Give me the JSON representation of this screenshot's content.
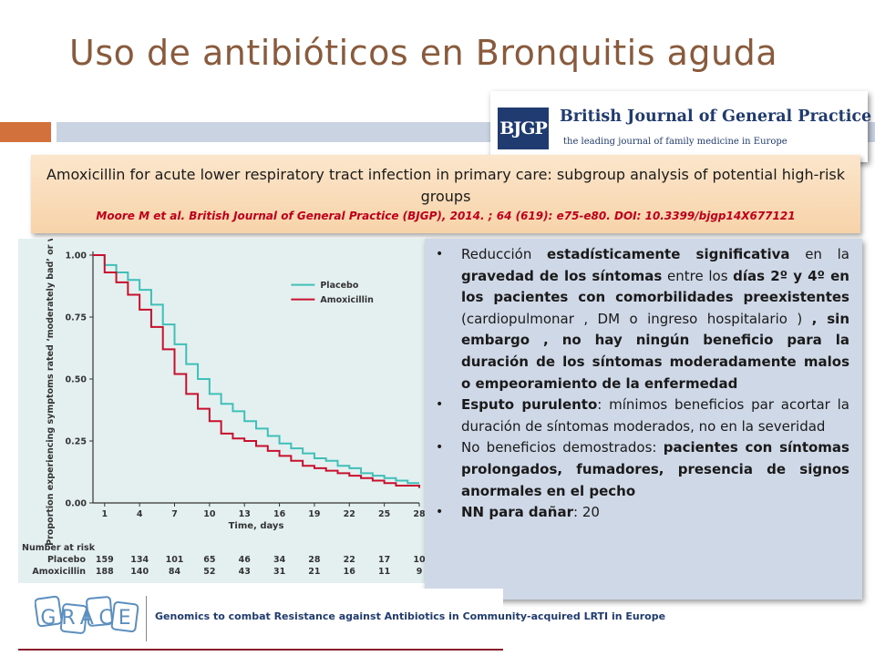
{
  "slide": {
    "title": "Uso de antibióticos en Bronquitis aguda"
  },
  "journal_logo": {
    "abbr": "BJGP",
    "name": "British Journal of General Practice",
    "tagline": "the leading journal of family medicine in Europe"
  },
  "reference": {
    "title": "Amoxicillin for acute lower respiratory tract infection in primary care: subgroup analysis of potential high-risk groups",
    "citation": "Moore M et al. British Journal of General Practice (BJGP), 2014. ; 64 (619): e75-e80. DOI: 10.3399/bjgp14X677121"
  },
  "bullets": [
    {
      "parts": [
        {
          "t": "Reducción "
        },
        {
          "t": "estadísticamente significativa",
          "b": true
        },
        {
          "t": " en la "
        },
        {
          "t": "gravedad de los síntomas",
          "b": true
        },
        {
          "t": " entre los "
        },
        {
          "t": "días 2º y 4º en los pacientes con comorbilidades preexistentes",
          "b": true
        },
        {
          "t": "  (cardiopulmonar , DM o ingreso hospitalario )  "
        },
        {
          "t": ", sin embargo , no hay ningún beneficio para la duración de los síntomas moderadamente malos o empeoramiento de la enfermedad",
          "b": true
        }
      ]
    },
    {
      "parts": [
        {
          "t": "Esputo purulento",
          "b": true
        },
        {
          "t": ": mínimos beneficios par acortar la duración de síntomas moderados,  no en la severidad"
        }
      ]
    },
    {
      "parts": [
        {
          "t": "No beneficios demostrados: "
        },
        {
          "t": "pacientes con síntomas prolongados, fumadores, presencia de signos anormales en el pecho",
          "b": true
        }
      ]
    },
    {
      "parts": [
        {
          "t": "NN para dañar",
          "b": true
        },
        {
          "t": ": 20"
        }
      ]
    }
  ],
  "chart_data": {
    "type": "line",
    "xlabel": "Time, days",
    "ylabel": "Proportion experiencing symptoms rated ‘moderately bad’ or worse",
    "xlim": [
      0,
      28
    ],
    "ylim": [
      0,
      1
    ],
    "x_ticks": [
      1,
      4,
      7,
      10,
      13,
      16,
      19,
      22,
      25,
      28
    ],
    "y_ticks": [
      "0.00",
      "0.25",
      "0.50",
      "0.75",
      "1.00"
    ],
    "legend_position": "top-right",
    "series": [
      {
        "name": "Placebo",
        "color": "#3fbfb8",
        "x": [
          0,
          1,
          2,
          3,
          4,
          5,
          6,
          7,
          8,
          9,
          10,
          11,
          12,
          13,
          14,
          15,
          16,
          17,
          18,
          19,
          20,
          21,
          22,
          23,
          24,
          25,
          26,
          27,
          28
        ],
        "y": [
          1.0,
          0.96,
          0.93,
          0.9,
          0.86,
          0.8,
          0.72,
          0.64,
          0.56,
          0.5,
          0.44,
          0.4,
          0.37,
          0.33,
          0.3,
          0.27,
          0.24,
          0.22,
          0.2,
          0.18,
          0.17,
          0.15,
          0.14,
          0.12,
          0.11,
          0.1,
          0.09,
          0.08,
          0.08
        ]
      },
      {
        "name": "Amoxicillin",
        "color": "#c8102e",
        "x": [
          0,
          1,
          2,
          3,
          4,
          5,
          6,
          7,
          8,
          9,
          10,
          11,
          12,
          13,
          14,
          15,
          16,
          17,
          18,
          19,
          20,
          21,
          22,
          23,
          24,
          25,
          26,
          27,
          28
        ],
        "y": [
          1.0,
          0.93,
          0.89,
          0.84,
          0.78,
          0.71,
          0.62,
          0.52,
          0.44,
          0.38,
          0.33,
          0.28,
          0.26,
          0.25,
          0.23,
          0.21,
          0.19,
          0.17,
          0.15,
          0.14,
          0.13,
          0.12,
          0.11,
          0.1,
          0.09,
          0.08,
          0.07,
          0.07,
          0.06
        ]
      }
    ],
    "risk_table": {
      "header": "Number at risk",
      "rows": [
        {
          "label": "Placebo",
          "values": [
            159,
            134,
            101,
            65,
            46,
            34,
            28,
            22,
            17,
            10
          ]
        },
        {
          "label": "Amoxicillin",
          "values": [
            188,
            140,
            84,
            52,
            43,
            31,
            21,
            16,
            11,
            9
          ]
        }
      ]
    }
  },
  "grace_logo": {
    "mark": "GRACE",
    "text": "Genomics to combat Resistance against Antibiotics in Community-acquired LRTI in Europe"
  },
  "colors": {
    "title": "#8a5a3c",
    "accent_orange": "#d3713c",
    "accent_blue": "#c9d3e2",
    "reference_box": "#f9dcb8",
    "citation": "#c0001a",
    "bullets_box": "#cfd8e6",
    "chart_background": "#e4f0ef",
    "placebo_line": "#3fbfb8",
    "amoxicillin_line": "#c8102e"
  }
}
